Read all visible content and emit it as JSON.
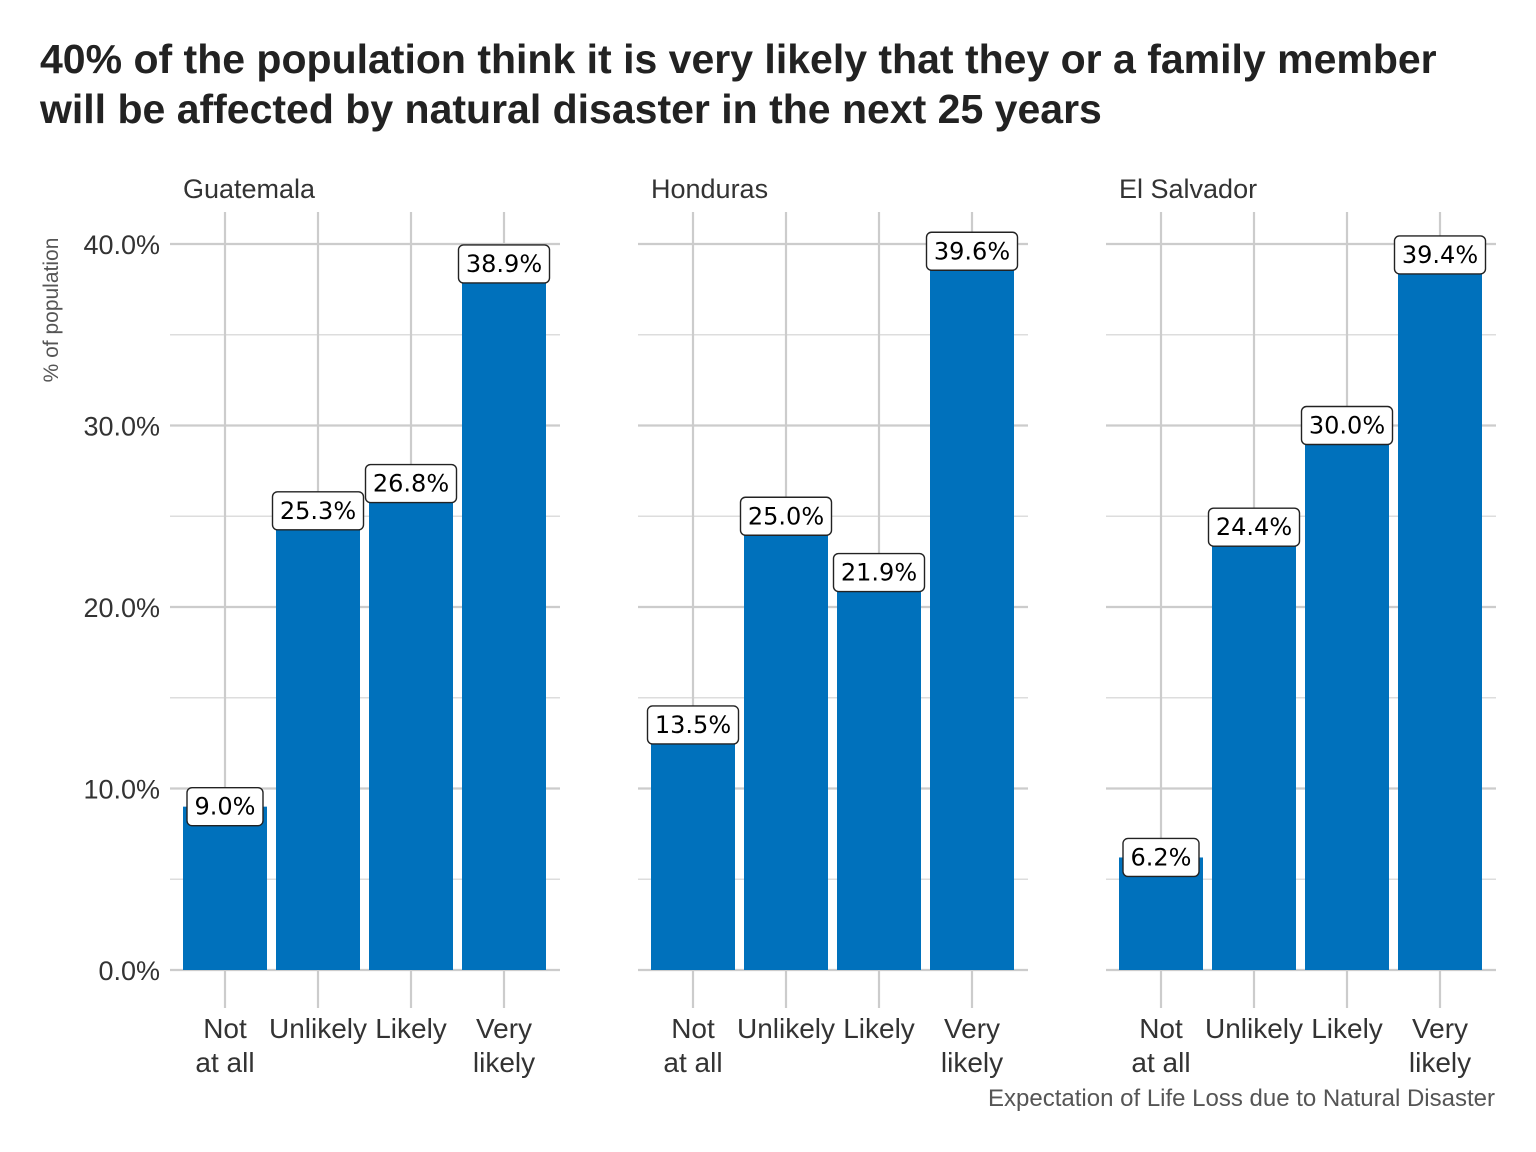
{
  "chart_data": {
    "type": "bar",
    "title": "40% of the population think it is very likely that they or a family member will be affected by natural disaster in the next 25 years",
    "xlabel": "Expectation of Life Loss due to Natural Disaster",
    "ylabel": "% of population",
    "ylim": [
      0,
      0.4
    ],
    "y_ticks": [
      0,
      0.1,
      0.2,
      0.3,
      0.4
    ],
    "y_tick_labels": [
      "0.0%",
      "10.0%",
      "20.0%",
      "30.0%",
      "40.0%"
    ],
    "categories": [
      [
        "Not",
        "at all"
      ],
      [
        "Unlikely"
      ],
      [
        "Likely"
      ],
      [
        "Very",
        "likely"
      ]
    ],
    "bar_color": "#0071BC",
    "grid": true,
    "legend": "none",
    "panels": [
      {
        "name": "Guatemala",
        "values": [
          0.09,
          0.253,
          0.268,
          0.389
        ],
        "labels": [
          "9.0%",
          "25.3%",
          "26.8%",
          "38.9%"
        ]
      },
      {
        "name": "Honduras",
        "values": [
          0.135,
          0.25,
          0.219,
          0.396
        ],
        "labels": [
          "13.5%",
          "25.0%",
          "21.9%",
          "39.6%"
        ]
      },
      {
        "name": "El Salvador",
        "values": [
          0.062,
          0.244,
          0.3,
          0.394
        ],
        "labels": [
          "6.2%",
          "24.4%",
          "30.0%",
          "39.4%"
        ]
      }
    ]
  }
}
